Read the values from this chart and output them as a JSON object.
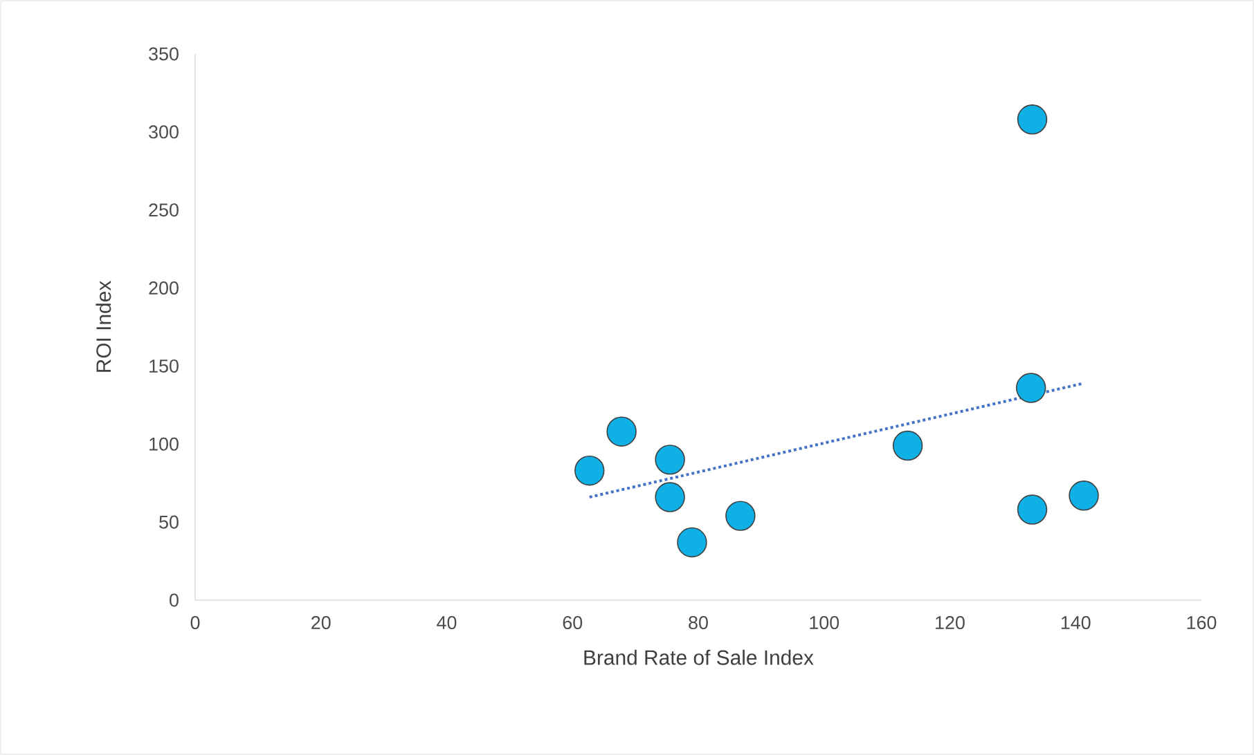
{
  "chart_data": {
    "type": "scatter",
    "xlabel": "Brand Rate of Sale Index",
    "ylabel": "ROI Index",
    "xlim": [
      0,
      160
    ],
    "xticks": [
      0,
      20,
      40,
      60,
      80,
      100,
      120,
      140,
      160
    ],
    "ylim": [
      0,
      350
    ],
    "yticks": [
      0,
      50,
      100,
      150,
      200,
      250,
      300,
      350
    ],
    "grid": false,
    "series": [
      {
        "color": "#0fb0e6",
        "marker": "circle",
        "x": [
          62.7,
          67.8,
          75.5,
          75.5,
          79,
          86.7,
          113.3,
          133.1,
          132.9,
          133.1,
          141.3
        ],
        "values": [
          83,
          108,
          90,
          66,
          37,
          54,
          99,
          308,
          136,
          58,
          67
        ]
      },
      {
        "type": "line",
        "color": "#4472c4",
        "marker": "none",
        "line_style": "dotted",
        "x": [
          62.7,
          141.3
        ],
        "values": [
          66,
          139
        ]
      }
    ]
  }
}
